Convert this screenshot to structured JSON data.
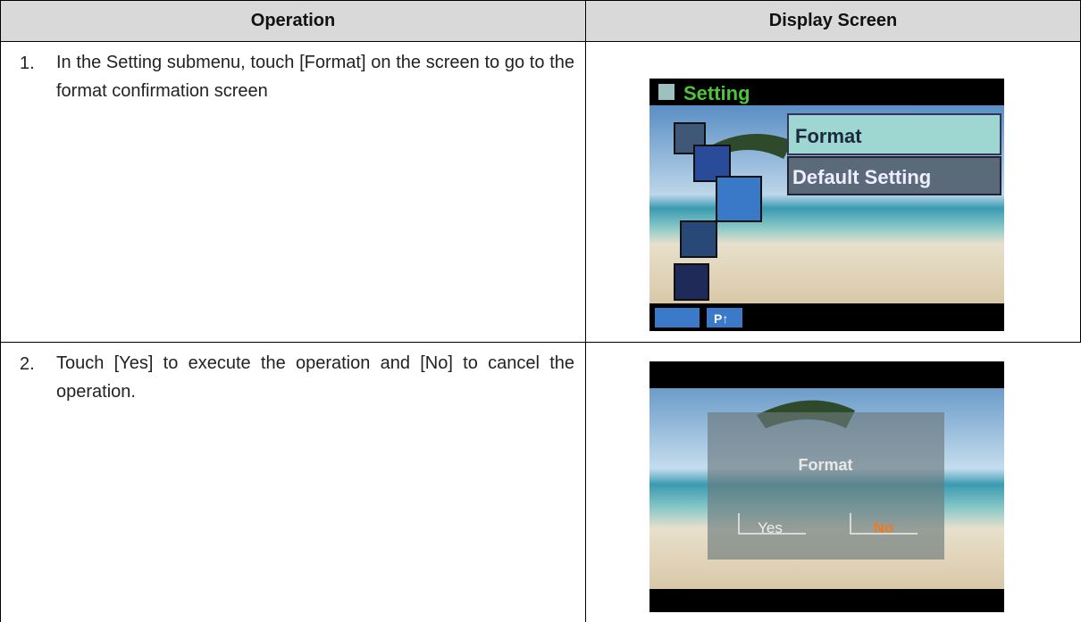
{
  "header": {
    "operation": "Operation",
    "display_screen": "Display Screen"
  },
  "rows": [
    {
      "number": "1.",
      "text": "In the Setting submenu, touch [Format] on the screen to go to the format confirmation screen",
      "screen": {
        "title": "Setting",
        "menu_items": [
          "Format",
          "Default Setting"
        ],
        "button": "P↑"
      }
    },
    {
      "number": "2.",
      "text": "Touch [Yes] to execute the operation and [No] to cancel the operation.",
      "screen": {
        "dialog_title": "Format",
        "options": [
          "Yes",
          "No"
        ]
      }
    }
  ]
}
